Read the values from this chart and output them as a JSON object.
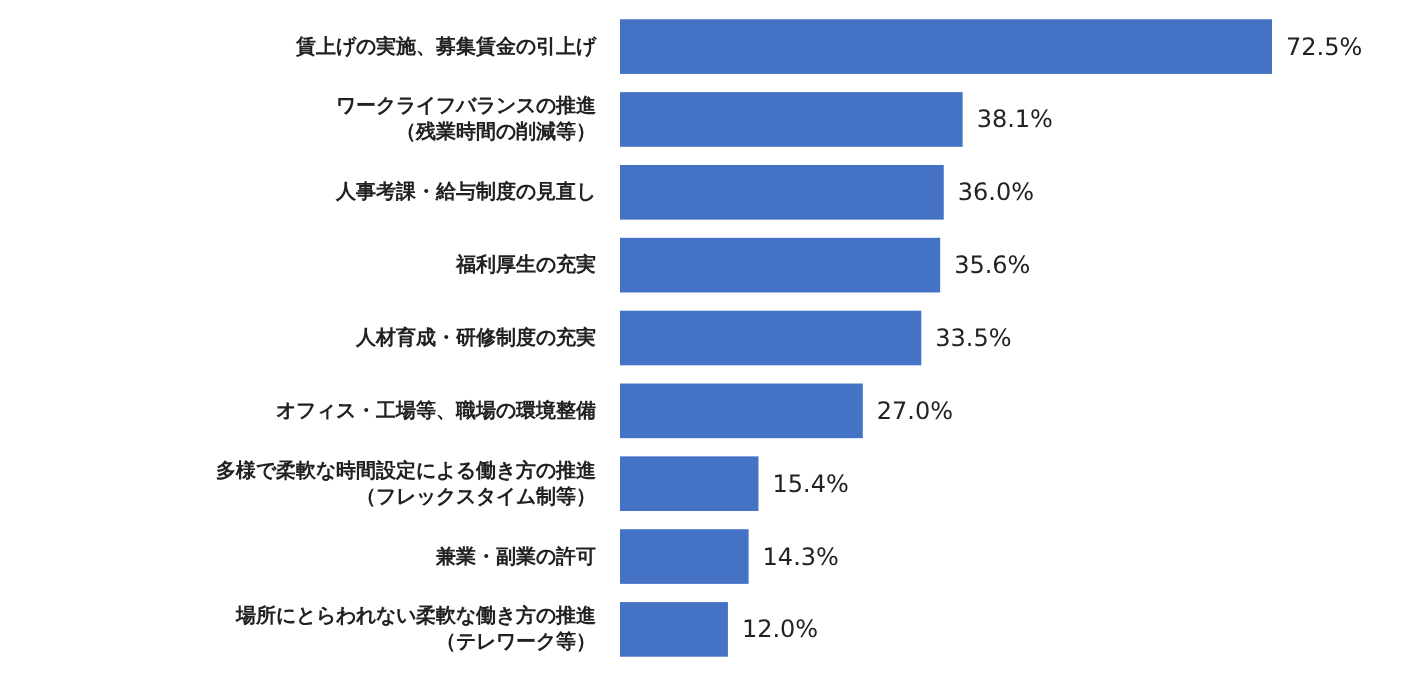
{
  "chart_data": {
    "type": "bar",
    "orientation": "horizontal",
    "categories": [
      "賃上げの実施、募集賃金の引上げ",
      "ワークライフバランスの推進（残業時間の削減等）",
      "人事考課・給与制度の見直し",
      "福利厚生の充実",
      "人材育成・研修制度の充実",
      "オフィス・工場等、職場の環境整備",
      "多様で柔軟な時間設定による働き方の推進（フレックスタイム制等）",
      "兼業・副業の許可",
      "場所にとらわれない柔軟な働き方の推進（テレワーク等）"
    ],
    "values": [
      72.5,
      38.1,
      36.0,
      35.6,
      33.5,
      27.0,
      15.4,
      14.3,
      12.0
    ],
    "value_labels": [
      "72.5%",
      "38.1%",
      "36.0%",
      "35.6%",
      "33.5%",
      "27.0%",
      "15.4%",
      "14.3%",
      "12.0%"
    ],
    "color": "#4472c4"
  }
}
